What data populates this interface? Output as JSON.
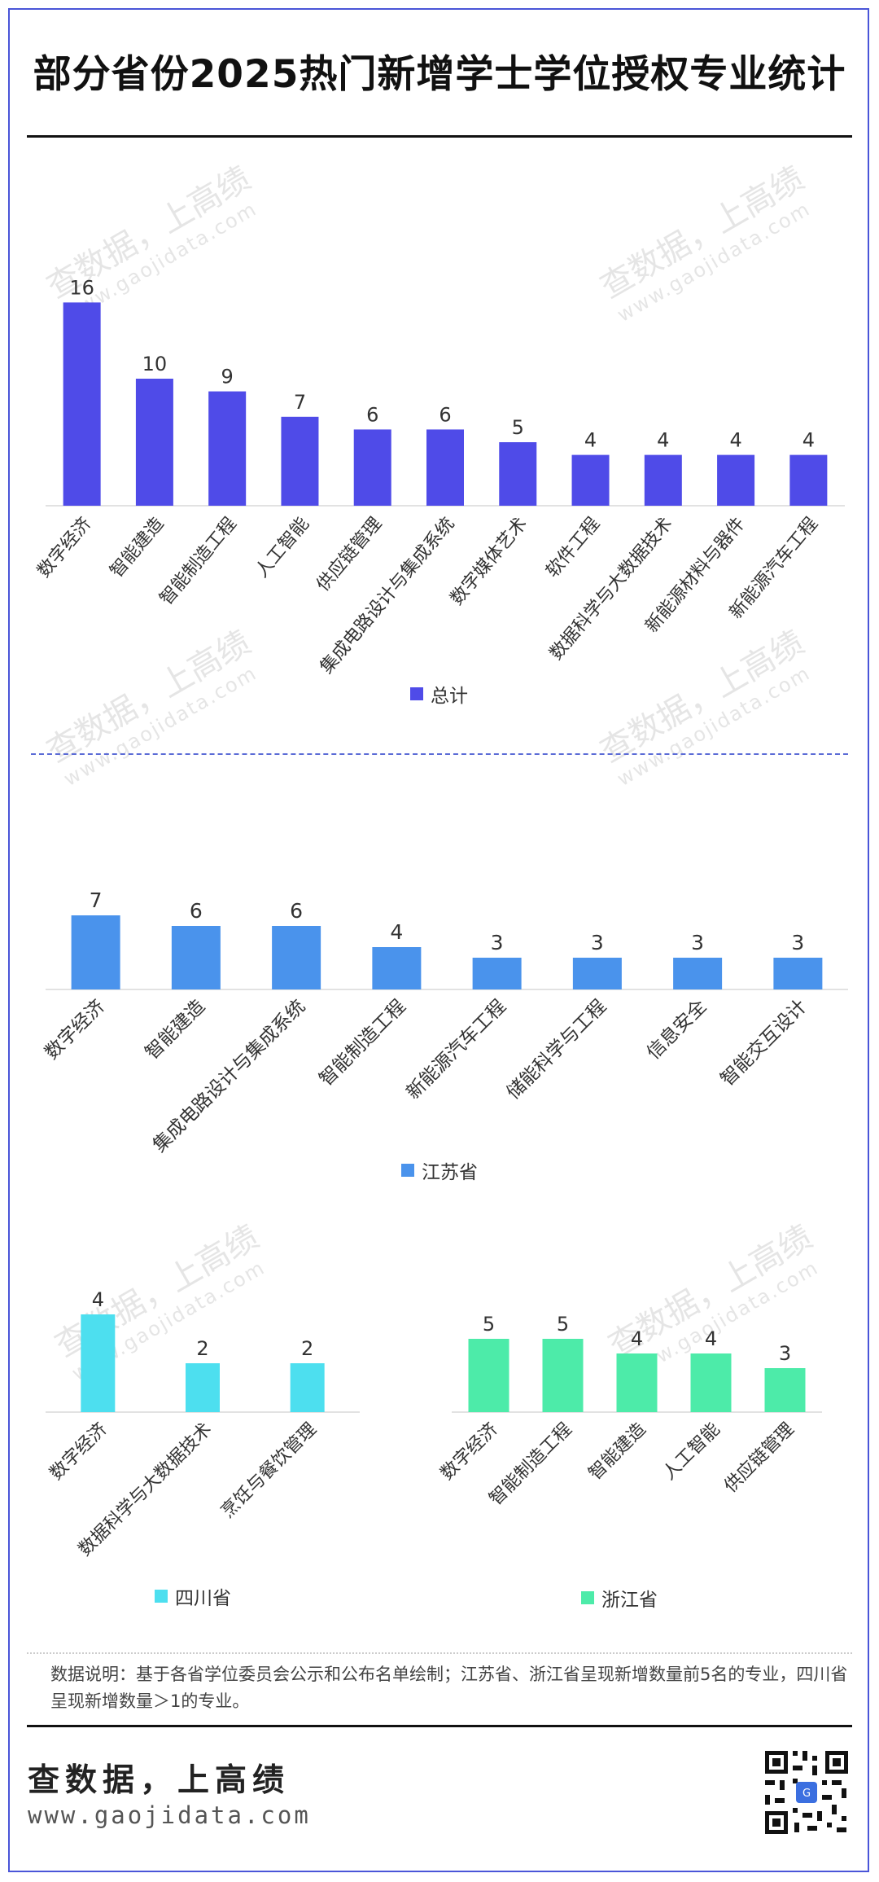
{
  "title": "部分省份2025热门新增学士学位授权专业统计",
  "chart_data": [
    {
      "type": "bar",
      "categories": [
        "数字经济",
        "智能建造",
        "智能制造工程",
        "人工智能",
        "供应链管理",
        "集成电路设计与集成系统",
        "数字媒体艺术",
        "软件工程",
        "数据科学与大数据技术",
        "新能源材料与器件",
        "新能源汽车工程"
      ],
      "series": [
        {
          "name": "总计",
          "values": [
            16,
            10,
            9,
            7,
            6,
            6,
            5,
            4,
            4,
            4,
            4
          ]
        }
      ],
      "color": "#4f4be8"
    },
    {
      "type": "bar",
      "categories": [
        "数字经济",
        "智能建造",
        "集成电路设计与集成系统",
        "智能制造工程",
        "新能源汽车工程",
        "储能科学与工程",
        "信息安全",
        "智能交互设计"
      ],
      "series": [
        {
          "name": "江苏省",
          "values": [
            7,
            6,
            6,
            4,
            3,
            3,
            3,
            3
          ]
        }
      ],
      "color": "#4a93ec"
    },
    {
      "type": "bar",
      "categories": [
        "数字经济",
        "数据科学与大数据技术",
        "烹饪与餐饮管理"
      ],
      "series": [
        {
          "name": "四川省",
          "values": [
            4,
            2,
            2
          ]
        }
      ],
      "color": "#4ddfef"
    },
    {
      "type": "bar",
      "categories": [
        "数字经济",
        "智能制造工程",
        "智能建造",
        "人工智能",
        "供应链管理"
      ],
      "series": [
        {
          "name": "浙江省",
          "values": [
            5,
            5,
            4,
            4,
            3
          ]
        }
      ],
      "color": "#4deba9"
    }
  ],
  "note": "数据说明：基于各省学位委员会公示和公布名单绘制；江苏省、浙江省呈现新增数量前5名的专业，四川省呈现新增数量＞1的专业。",
  "brand": "查数据，上高绩",
  "site": "www.gaojidata.com",
  "watermark": {
    "brand": "查数据，上高绩",
    "site": "www.gaojidata.com"
  },
  "qr_icon": "qr-code-icon"
}
